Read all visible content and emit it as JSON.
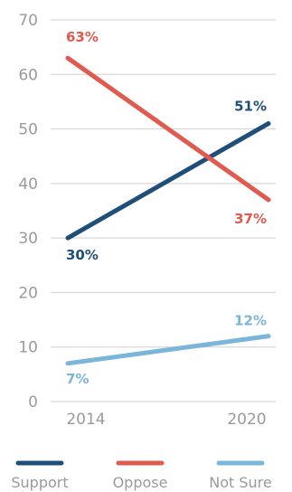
{
  "chart_data": {
    "type": "line",
    "x": [
      "2014",
      "2020"
    ],
    "ylim": [
      0,
      70
    ],
    "yticks": [
      0,
      10,
      20,
      30,
      40,
      50,
      60,
      70
    ],
    "grid": true,
    "legend_position": "bottom",
    "series": [
      {
        "name": "Support",
        "color": "#1f4e79",
        "values": [
          30,
          51
        ],
        "labels": [
          "30%",
          "51%"
        ]
      },
      {
        "name": "Oppose",
        "color": "#e05a4f",
        "values": [
          63,
          37
        ],
        "labels": [
          "63%",
          "37%"
        ]
      },
      {
        "name": "Not Sure",
        "color": "#7ab6d9",
        "values": [
          7,
          12
        ],
        "labels": [
          "7%",
          "12%"
        ]
      }
    ]
  }
}
